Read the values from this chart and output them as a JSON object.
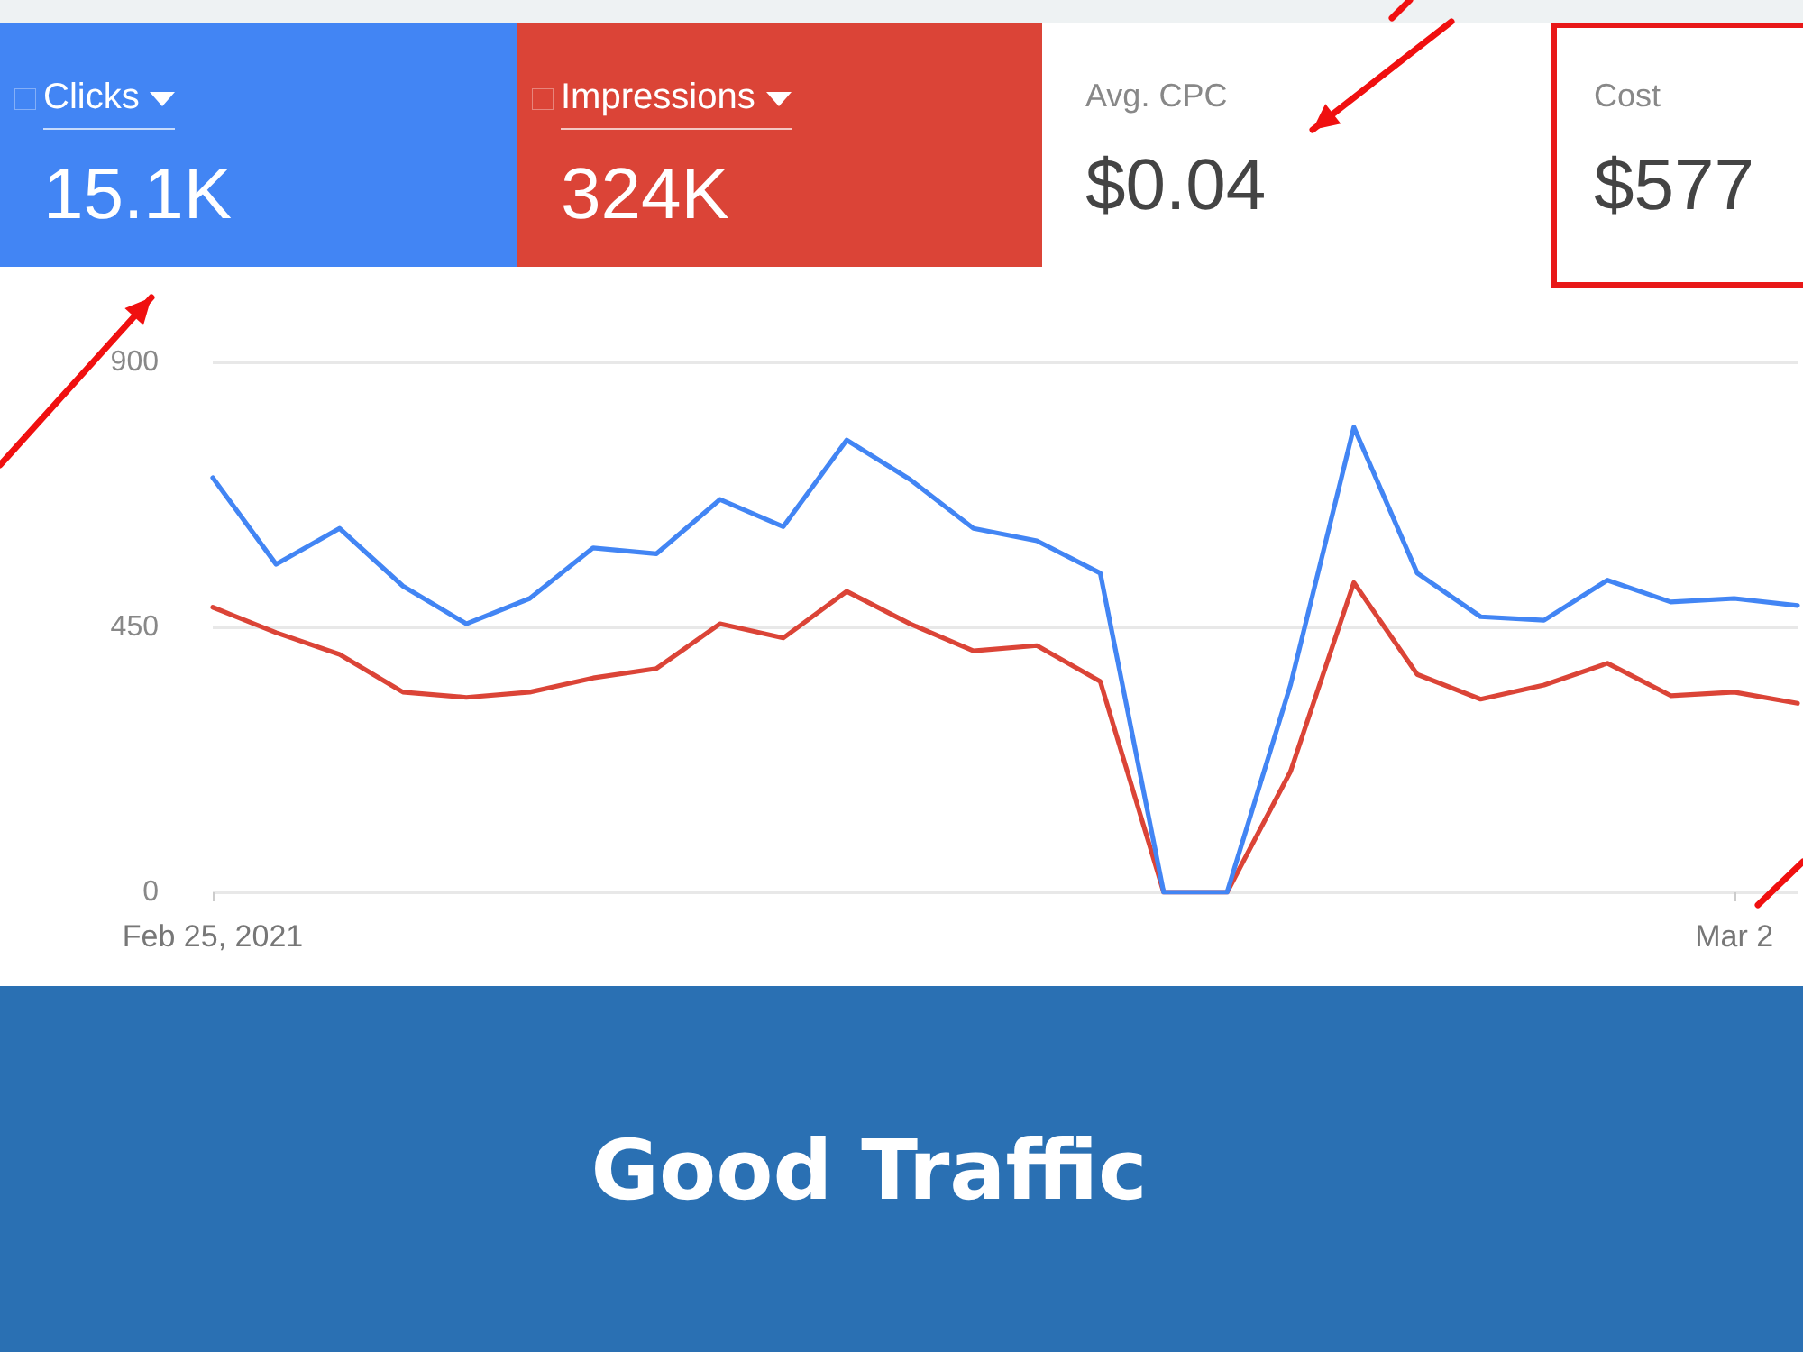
{
  "chart_data": {
    "type": "line",
    "title": "Good Traffic",
    "categories": [
      "Feb 25, 2021",
      null,
      null,
      null,
      null,
      null,
      null,
      null,
      null,
      null,
      null,
      null,
      null,
      null,
      null,
      null,
      null,
      null,
      null,
      null,
      null,
      null,
      null,
      null,
      "Mar 2",
      null
    ],
    "series": [
      {
        "name": "Clicks",
        "color": "#4285f4",
        "values": [
          704,
          557,
          618,
          520,
          456,
          499,
          585,
          575,
          667,
          621,
          768,
          701,
          618,
          597,
          542,
          0,
          0,
          352,
          790,
          542,
          468,
          462,
          530,
          493,
          499,
          487
        ]
      },
      {
        "name": "Impressions",
        "color": "#db4437",
        "values": [
          484,
          441,
          404,
          340,
          331,
          340,
          364,
          380,
          456,
          432,
          511,
          456,
          410,
          419,
          358,
          0,
          0,
          205,
          526,
          370,
          328,
          352,
          389,
          334,
          340,
          321
        ]
      }
    ],
    "annotations": [
      "15.1K",
      "324K",
      "Avg. CPC",
      "$0.04",
      "Cost",
      "$577"
    ],
    "ylim": [
      0,
      900
    ],
    "yticks": [
      0,
      450,
      900
    ],
    "grid": "y",
    "legend": "top",
    "marker": "none",
    "line_style": "solid"
  }
}
